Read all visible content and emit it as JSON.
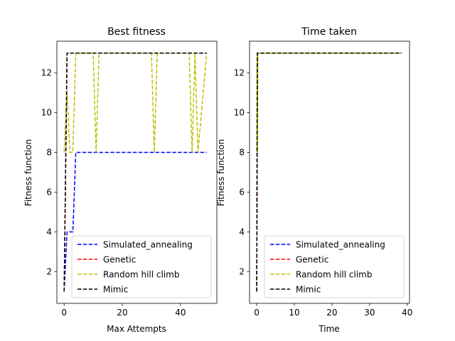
{
  "chart_data": [
    {
      "type": "line",
      "title": "Best fitness",
      "xlabel": "Max Attempts",
      "ylabel": "Fitness function",
      "xlim": [
        -2.5,
        52.5
      ],
      "ylim": [
        0.4,
        13.6
      ],
      "xticks": [
        0,
        20,
        40
      ],
      "yticks": [
        2,
        4,
        6,
        8,
        10,
        12
      ],
      "legend_position": "lower-right",
      "series": [
        {
          "name": "Simulated_annealing",
          "color": "#0000ff",
          "x": [
            0,
            1,
            1,
            2,
            3,
            4,
            4,
            5,
            49
          ],
          "y": [
            1,
            4,
            4,
            4,
            4,
            8,
            8,
            8,
            8
          ]
        },
        {
          "name": "Genetic",
          "color": "#ff0000",
          "x": [
            0,
            1,
            49
          ],
          "y": [
            1,
            13,
            13
          ]
        },
        {
          "name": "Random hill climb",
          "color": "#bfbf00",
          "x": [
            0,
            1,
            2,
            3,
            4,
            10,
            11,
            12,
            30,
            31,
            32,
            43,
            44,
            45,
            46,
            49
          ],
          "y": [
            8,
            11,
            8,
            8,
            13,
            13,
            8,
            13,
            13,
            8,
            13,
            13,
            8,
            13,
            8,
            13
          ]
        },
        {
          "name": "Mimic",
          "color": "#000000",
          "x": [
            0,
            1,
            49
          ],
          "y": [
            1,
            13,
            13
          ]
        }
      ]
    },
    {
      "type": "line",
      "title": "Time taken",
      "xlabel": "Time",
      "ylabel": "Fitness function",
      "xlim": [
        -1.9,
        40.6
      ],
      "ylim": [
        0.4,
        13.6
      ],
      "xticks": [
        0,
        10,
        20,
        30,
        40
      ],
      "yticks": [
        2,
        4,
        6,
        8,
        10,
        12
      ],
      "legend_position": "lower-right",
      "series": [
        {
          "name": "Simulated_annealing",
          "color": "#0000ff",
          "x": [
            0,
            0.1,
            0.2,
            0.3,
            38.5
          ],
          "y": [
            1,
            8,
            13,
            13,
            13
          ]
        },
        {
          "name": "Genetic",
          "color": "#ff0000",
          "x": [
            0,
            0.2,
            38.5
          ],
          "y": [
            1,
            13,
            13
          ]
        },
        {
          "name": "Random hill climb",
          "color": "#bfbf00",
          "x": [
            0,
            0.1,
            0.2,
            0.3,
            38.5
          ],
          "y": [
            8,
            13,
            8,
            13,
            13
          ]
        },
        {
          "name": "Mimic",
          "color": "#000000",
          "x": [
            0,
            0.2,
            38.5
          ],
          "y": [
            1,
            13,
            13
          ]
        }
      ]
    }
  ]
}
